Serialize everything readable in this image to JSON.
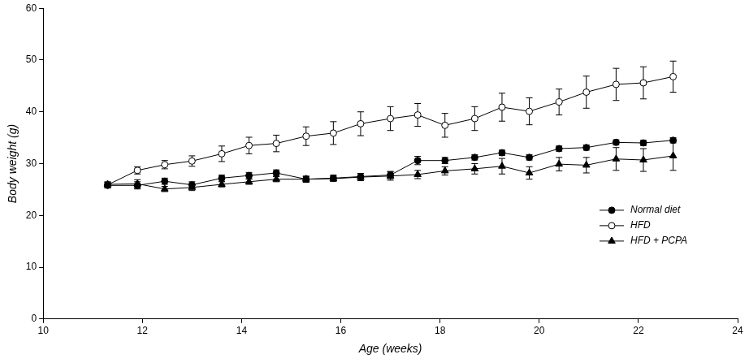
{
  "chart_data": {
    "type": "line",
    "x_label": "Age (weeks)",
    "y_label": "Body weight (g)",
    "xlim": [
      10,
      24
    ],
    "xticks": [
      10,
      12,
      14,
      16,
      18,
      20,
      22,
      24
    ],
    "ylim": [
      0,
      60
    ],
    "yticks": [
      0,
      10,
      20,
      30,
      40,
      50,
      60
    ],
    "grid": false,
    "legend": "lower right",
    "x": [
      11.3,
      11.9,
      12.45,
      13.0,
      13.6,
      14.15,
      14.7,
      15.3,
      15.85,
      16.4,
      17.0,
      17.55,
      18.1,
      18.7,
      19.25,
      19.8,
      20.4,
      20.95,
      21.55,
      22.1,
      22.7
    ],
    "series": [
      {
        "name": "Normal diet",
        "color": "#000000",
        "marker": "circle",
        "line_style": "solid",
        "values": [
          25.8,
          25.8,
          26.6,
          25.9,
          27.2,
          27.7,
          28.2,
          27.0,
          27.2,
          27.5,
          27.8,
          30.6,
          30.6,
          31.2,
          32.1,
          31.2,
          32.9,
          33.1,
          34.1,
          34.0,
          34.5
        ],
        "errors": [
          0.5,
          0.7,
          0.6,
          0.6,
          0.6,
          0.6,
          0.6,
          0.6,
          0.6,
          0.6,
          0.7,
          0.8,
          0.6,
          0.5,
          0.5,
          0.5,
          0.5,
          0.5,
          0.5,
          0.5,
          0.5
        ]
      },
      {
        "name": "HFD",
        "color": "#000000",
        "marker": "open_circle",
        "line_style": "solid",
        "values": [
          25.9,
          28.7,
          29.8,
          30.5,
          31.9,
          33.5,
          33.9,
          35.3,
          35.9,
          37.7,
          38.7,
          39.4,
          37.4,
          38.7,
          40.9,
          40.1,
          41.9,
          43.8,
          45.3,
          45.6,
          46.8
        ],
        "errors": [
          0.5,
          0.7,
          0.8,
          1.0,
          1.5,
          1.6,
          1.6,
          1.8,
          2.2,
          2.3,
          2.3,
          2.2,
          2.3,
          2.3,
          2.7,
          2.6,
          2.5,
          3.1,
          3.1,
          3.1,
          3.0
        ]
      },
      {
        "name": "HFD + PCPA",
        "color": "#000000",
        "marker": "triangle",
        "line_style": "solid",
        "values": [
          26.0,
          26.1,
          25.1,
          25.4,
          26.0,
          26.5,
          27.0,
          27.0,
          27.1,
          27.4,
          27.6,
          27.9,
          28.6,
          29.0,
          29.5,
          28.2,
          29.9,
          29.7,
          30.9,
          30.7,
          31.5
        ],
        "errors": [
          0.5,
          0.8,
          0.5,
          0.6,
          0.5,
          0.5,
          0.5,
          0.5,
          0.5,
          0.7,
          0.8,
          0.8,
          0.8,
          1.0,
          1.5,
          1.2,
          1.3,
          1.5,
          2.2,
          2.2,
          2.8
        ]
      }
    ]
  }
}
